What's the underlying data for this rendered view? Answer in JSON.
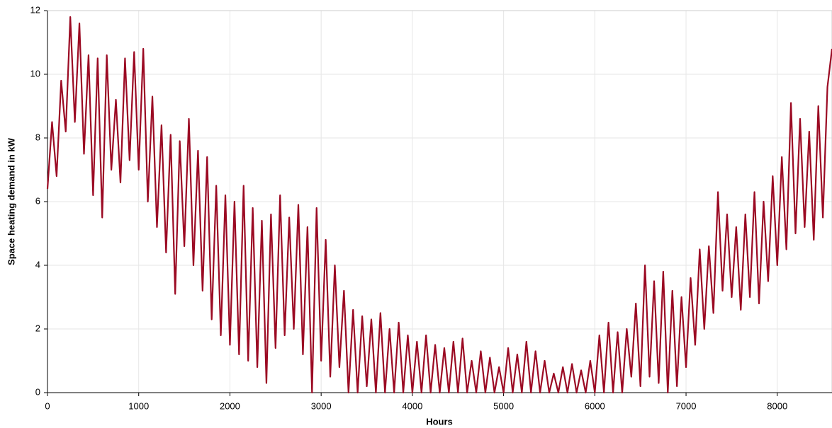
{
  "chart_data": {
    "type": "line",
    "xlabel": "Hours",
    "ylabel": "Space heating demand in kW",
    "xlim": [
      0,
      8600
    ],
    "ylim": [
      0,
      12
    ],
    "xticks": [
      0,
      1000,
      2000,
      3000,
      4000,
      5000,
      6000,
      7000,
      8000
    ],
    "yticks": [
      0,
      2,
      4,
      6,
      8,
      10,
      12
    ],
    "grid": true,
    "x": [
      0,
      50,
      100,
      150,
      200,
      250,
      300,
      350,
      400,
      450,
      500,
      550,
      600,
      650,
      700,
      750,
      800,
      850,
      900,
      950,
      1000,
      1050,
      1100,
      1150,
      1200,
      1250,
      1300,
      1350,
      1400,
      1450,
      1500,
      1550,
      1600,
      1650,
      1700,
      1750,
      1800,
      1850,
      1900,
      1950,
      2000,
      2050,
      2100,
      2150,
      2200,
      2250,
      2300,
      2350,
      2400,
      2450,
      2500,
      2550,
      2600,
      2650,
      2700,
      2750,
      2800,
      2850,
      2900,
      2950,
      3000,
      3050,
      3100,
      3150,
      3200,
      3250,
      3300,
      3350,
      3400,
      3450,
      3500,
      3550,
      3600,
      3650,
      3700,
      3750,
      3800,
      3850,
      3900,
      3950,
      4000,
      4050,
      4100,
      4150,
      4200,
      4250,
      4300,
      4350,
      4400,
      4450,
      4500,
      4550,
      4600,
      4650,
      4700,
      4750,
      4800,
      4850,
      4900,
      4950,
      5000,
      5050,
      5100,
      5150,
      5200,
      5250,
      5300,
      5350,
      5400,
      5450,
      5500,
      5550,
      5600,
      5650,
      5700,
      5750,
      5800,
      5850,
      5900,
      5950,
      6000,
      6050,
      6100,
      6150,
      6200,
      6250,
      6300,
      6350,
      6400,
      6450,
      6500,
      6550,
      6600,
      6650,
      6700,
      6750,
      6800,
      6850,
      6900,
      6950,
      7000,
      7050,
      7100,
      7150,
      7200,
      7250,
      7300,
      7350,
      7400,
      7450,
      7500,
      7550,
      7600,
      7650,
      7700,
      7750,
      7800,
      7850,
      7900,
      7950,
      8000,
      8050,
      8100,
      8150,
      8200,
      8250,
      8300,
      8350,
      8400,
      8450,
      8500,
      8550,
      8600
    ],
    "series": [
      {
        "color": "#9b0a23",
        "values": [
          6.4,
          8.5,
          6.8,
          9.8,
          8.2,
          11.8,
          8.5,
          11.6,
          7.5,
          10.6,
          6.2,
          10.5,
          5.5,
          10.6,
          7.0,
          9.2,
          6.6,
          10.5,
          7.3,
          10.7,
          7.0,
          10.8,
          6.0,
          9.3,
          5.2,
          8.4,
          4.4,
          8.1,
          3.1,
          7.9,
          4.6,
          8.6,
          4.0,
          7.6,
          3.2,
          7.4,
          2.3,
          6.5,
          1.8,
          6.2,
          1.5,
          6.0,
          1.2,
          6.5,
          1.0,
          5.8,
          0.8,
          5.4,
          0.3,
          5.6,
          1.4,
          6.2,
          1.8,
          5.5,
          2.0,
          5.9,
          1.2,
          5.2,
          0.0,
          5.8,
          1.0,
          4.8,
          0.5,
          4.0,
          0.8,
          3.2,
          0.0,
          2.6,
          0.0,
          2.4,
          0.2,
          2.3,
          0.0,
          2.5,
          0.0,
          2.0,
          0.0,
          2.2,
          0.0,
          1.8,
          0.0,
          1.6,
          0.0,
          1.8,
          0.0,
          1.5,
          0.0,
          1.4,
          0.0,
          1.6,
          0.0,
          1.7,
          0.0,
          1.0,
          0.0,
          1.3,
          0.0,
          1.1,
          0.0,
          0.8,
          0.0,
          1.4,
          0.0,
          1.2,
          0.0,
          1.6,
          0.0,
          1.3,
          0.0,
          1.0,
          0.0,
          0.6,
          0.0,
          0.8,
          0.0,
          0.9,
          0.0,
          0.7,
          0.0,
          1.0,
          0.0,
          1.8,
          0.0,
          2.2,
          0.0,
          1.9,
          0.0,
          2.0,
          0.5,
          2.8,
          0.2,
          4.0,
          0.5,
          3.5,
          0.3,
          3.8,
          0.0,
          3.2,
          0.2,
          3.0,
          0.8,
          3.6,
          1.5,
          4.5,
          2.0,
          4.6,
          2.5,
          6.3,
          3.2,
          5.6,
          3.0,
          5.2,
          2.6,
          5.6,
          3.0,
          6.3,
          2.8,
          6.0,
          3.5,
          6.8,
          4.0,
          7.4,
          4.5,
          9.1,
          5.0,
          8.6,
          5.2,
          8.2,
          4.8,
          9.0,
          5.5,
          9.6,
          10.8
        ]
      }
    ]
  }
}
